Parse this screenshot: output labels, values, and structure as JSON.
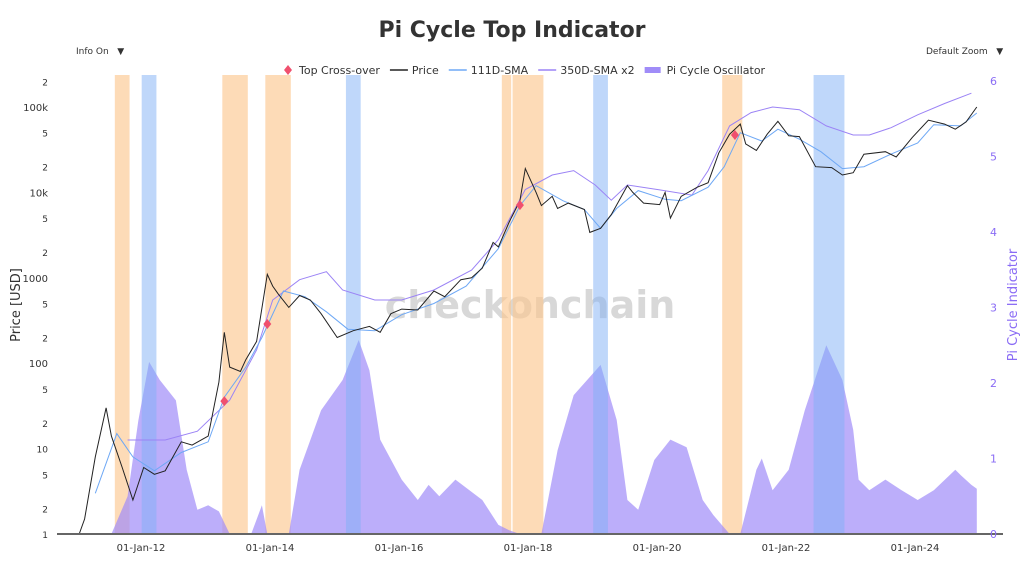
{
  "title": "Pi Cycle Top Indicator",
  "controls": {
    "info": "Info On",
    "zoom": "Default Zoom",
    "caret": "▼"
  },
  "watermark": "checkonchain",
  "colors": {
    "price": "#222222",
    "sma111": "#6ea8f5",
    "sma350x2": "#9b83f5",
    "oscillator": "#a08cf8",
    "top_band": "#fcc890",
    "bottom_band": "#7fb0f5",
    "crossover": "#f0506e",
    "right_axis": "#8a6cf5"
  },
  "chart_data": {
    "type": "line",
    "title": "Pi Cycle Top Indicator",
    "ylabel": "Price [USD]",
    "y2label": "Pi Cycle Indicator",
    "yscale": "log",
    "ylim": [
      1,
      200000
    ],
    "y2lim": [
      0,
      6
    ],
    "xlim": [
      "2010-05",
      "2025-03"
    ],
    "x_ticks": [
      "01-Jan-12",
      "01-Jan-14",
      "01-Jan-16",
      "01-Jan-18",
      "01-Jan-20",
      "01-Jan-22",
      "01-Jan-24"
    ],
    "y_ticks": [
      "1",
      "2",
      "5",
      "10",
      "2",
      "5",
      "100",
      "2",
      "5",
      "1000",
      "2",
      "5",
      "10k",
      "2",
      "5",
      "100k",
      "2"
    ],
    "y2_ticks": [
      "0",
      "1",
      "2",
      "3",
      "4",
      "5",
      "6"
    ],
    "legend": [
      "Top Cross-over",
      "Price",
      "111D-SMA",
      "350D-SMA x2",
      "Pi Cycle Oscillator"
    ],
    "legend_position": "top",
    "grid": false,
    "price": [
      [
        "2010-10",
        1
      ],
      [
        "2011-01",
        1
      ],
      [
        "2011-02",
        1.5
      ],
      [
        "2011-04",
        8
      ],
      [
        "2011-06",
        30
      ],
      [
        "2011-07",
        14
      ],
      [
        "2011-09",
        6
      ],
      [
        "2011-11",
        2.5
      ],
      [
        "2012-01",
        6
      ],
      [
        "2012-03",
        5
      ],
      [
        "2012-05",
        5.5
      ],
      [
        "2012-08",
        12
      ],
      [
        "2012-10",
        11
      ],
      [
        "2013-01",
        14
      ],
      [
        "2013-03",
        60
      ],
      [
        "2013-04",
        230
      ],
      [
        "2013-05",
        90
      ],
      [
        "2013-07",
        80
      ],
      [
        "2013-08",
        110
      ],
      [
        "2013-10",
        180
      ],
      [
        "2013-12",
        1100
      ],
      [
        "2014-01",
        800
      ],
      [
        "2014-02",
        650
      ],
      [
        "2014-04",
        450
      ],
      [
        "2014-06",
        620
      ],
      [
        "2014-08",
        550
      ],
      [
        "2014-10",
        380
      ],
      [
        "2015-01",
        200
      ],
      [
        "2015-04",
        240
      ],
      [
        "2015-07",
        270
      ],
      [
        "2015-09",
        230
      ],
      [
        "2015-11",
        380
      ],
      [
        "2016-01",
        430
      ],
      [
        "2016-04",
        420
      ],
      [
        "2016-07",
        700
      ],
      [
        "2016-09",
        600
      ],
      [
        "2016-12",
        950
      ],
      [
        "2017-02",
        1000
      ],
      [
        "2017-04",
        1300
      ],
      [
        "2017-06",
        2600
      ],
      [
        "2017-07",
        2300
      ],
      [
        "2017-09",
        4500
      ],
      [
        "2017-11",
        8000
      ],
      [
        "2017-12",
        19000
      ],
      [
        "2018-02",
        10000
      ],
      [
        "2018-03",
        7000
      ],
      [
        "2018-05",
        9000
      ],
      [
        "2018-06",
        6500
      ],
      [
        "2018-08",
        7500
      ],
      [
        "2018-11",
        6300
      ],
      [
        "2018-12",
        3400
      ],
      [
        "2019-02",
        3800
      ],
      [
        "2019-04",
        5500
      ],
      [
        "2019-07",
        12000
      ],
      [
        "2019-08",
        10000
      ],
      [
        "2019-10",
        7500
      ],
      [
        "2020-01",
        7200
      ],
      [
        "2020-02",
        10000
      ],
      [
        "2020-03",
        5000
      ],
      [
        "2020-05",
        9000
      ],
      [
        "2020-08",
        11500
      ],
      [
        "2020-10",
        13000
      ],
      [
        "2020-12",
        29000
      ],
      [
        "2021-02",
        48000
      ],
      [
        "2021-04",
        63000
      ],
      [
        "2021-05",
        37000
      ],
      [
        "2021-07",
        31000
      ],
      [
        "2021-09",
        48000
      ],
      [
        "2021-11",
        68000
      ],
      [
        "2022-01",
        46000
      ],
      [
        "2022-03",
        45000
      ],
      [
        "2022-06",
        20000
      ],
      [
        "2022-09",
        19500
      ],
      [
        "2022-11",
        16000
      ],
      [
        "2023-01",
        17000
      ],
      [
        "2023-03",
        28000
      ],
      [
        "2023-07",
        30000
      ],
      [
        "2023-09",
        26000
      ],
      [
        "2023-12",
        44000
      ],
      [
        "2024-03",
        70000
      ],
      [
        "2024-06",
        63000
      ],
      [
        "2024-08",
        55000
      ],
      [
        "2024-10",
        67000
      ],
      [
        "2024-12",
        100000
      ]
    ],
    "sma111": [
      [
        "2011-04",
        3
      ],
      [
        "2011-08",
        15
      ],
      [
        "2011-11",
        8
      ],
      [
        "2012-03",
        5.5
      ],
      [
        "2012-08",
        9
      ],
      [
        "2013-01",
        12
      ],
      [
        "2013-04",
        40
      ],
      [
        "2013-08",
        90
      ],
      [
        "2013-11",
        200
      ],
      [
        "2014-03",
        700
      ],
      [
        "2014-07",
        600
      ],
      [
        "2014-11",
        400
      ],
      [
        "2015-03",
        250
      ],
      [
        "2015-08",
        240
      ],
      [
        "2016-01",
        370
      ],
      [
        "2016-07",
        500
      ],
      [
        "2017-01",
        800
      ],
      [
        "2017-07",
        2200
      ],
      [
        "2017-11",
        7000
      ],
      [
        "2018-02",
        12000
      ],
      [
        "2018-07",
        8000
      ],
      [
        "2018-11",
        6300
      ],
      [
        "2019-02",
        3800
      ],
      [
        "2019-05",
        6500
      ],
      [
        "2019-09",
        10500
      ],
      [
        "2020-02",
        8300
      ],
      [
        "2020-05",
        8000
      ],
      [
        "2020-10",
        11500
      ],
      [
        "2021-01",
        20000
      ],
      [
        "2021-04",
        50000
      ],
      [
        "2021-08",
        40000
      ],
      [
        "2021-11",
        55000
      ],
      [
        "2022-03",
        42000
      ],
      [
        "2022-07",
        30000
      ],
      [
        "2022-11",
        19000
      ],
      [
        "2023-03",
        20000
      ],
      [
        "2023-08",
        28000
      ],
      [
        "2024-01",
        38000
      ],
      [
        "2024-04",
        62000
      ],
      [
        "2024-09",
        60000
      ],
      [
        "2024-12",
        85000
      ]
    ],
    "sma350x2": [
      [
        "2011-10",
        12.6
      ],
      [
        "2012-05",
        12.6
      ],
      [
        "2012-11",
        16
      ],
      [
        "2013-05",
        37
      ],
      [
        "2013-10",
        143
      ],
      [
        "2014-01",
        550
      ],
      [
        "2014-06",
        950
      ],
      [
        "2014-11",
        1180
      ],
      [
        "2015-02",
        720
      ],
      [
        "2015-08",
        550
      ],
      [
        "2016-01",
        550
      ],
      [
        "2016-07",
        720
      ],
      [
        "2017-02",
        1230
      ],
      [
        "2017-07",
        2800
      ],
      [
        "2017-12",
        10800
      ],
      [
        "2018-05",
        16000
      ],
      [
        "2018-09",
        18000
      ],
      [
        "2019-01",
        12200
      ],
      [
        "2019-04",
        8100
      ],
      [
        "2019-07",
        12200
      ],
      [
        "2020-01",
        10700
      ],
      [
        "2020-07",
        9300
      ],
      [
        "2020-10",
        18000
      ],
      [
        "2021-02",
        60000
      ],
      [
        "2021-06",
        86000
      ],
      [
        "2021-10",
        100000
      ],
      [
        "2022-03",
        93000
      ],
      [
        "2022-08",
        60000
      ],
      [
        "2023-01",
        47000
      ],
      [
        "2023-04",
        47000
      ],
      [
        "2023-08",
        57000
      ],
      [
        "2024-01",
        81000
      ],
      [
        "2024-06",
        110000
      ],
      [
        "2024-11",
        145000
      ]
    ],
    "oscillator": [
      [
        "2011-07",
        0
      ],
      [
        "2011-10",
        0.5
      ],
      [
        "2011-12",
        1.5
      ],
      [
        "2012-02",
        2.28
      ],
      [
        "2012-04",
        2.04
      ],
      [
        "2012-07",
        1.77
      ],
      [
        "2012-09",
        0.85
      ],
      [
        "2012-11",
        0.32
      ],
      [
        "2013-01",
        0.38
      ],
      [
        "2013-03",
        0.3
      ],
      [
        "2013-05",
        0
      ],
      [
        "2013-09",
        0
      ],
      [
        "2013-11",
        0.38
      ],
      [
        "2013-12",
        0
      ],
      [
        "2014-04",
        0
      ],
      [
        "2014-06",
        0.85
      ],
      [
        "2014-10",
        1.64
      ],
      [
        "2015-02",
        2.04
      ],
      [
        "2015-05",
        2.57
      ],
      [
        "2015-07",
        2.17
      ],
      [
        "2015-09",
        1.25
      ],
      [
        "2016-01",
        0.72
      ],
      [
        "2016-04",
        0.45
      ],
      [
        "2016-06",
        0.65
      ],
      [
        "2016-08",
        0.5
      ],
      [
        "2016-11",
        0.72
      ],
      [
        "2017-04",
        0.45
      ],
      [
        "2017-07",
        0.12
      ],
      [
        "2017-09",
        0.05
      ],
      [
        "2017-11",
        0
      ],
      [
        "2018-03",
        0
      ],
      [
        "2018-06",
        1.11
      ],
      [
        "2018-09",
        1.84
      ],
      [
        "2019-02",
        2.24
      ],
      [
        "2019-05",
        1.51
      ],
      [
        "2019-07",
        0.45
      ],
      [
        "2019-09",
        0.32
      ],
      [
        "2019-12",
        0.98
      ],
      [
        "2020-03",
        1.25
      ],
      [
        "2020-06",
        1.15
      ],
      [
        "2020-09",
        0.45
      ],
      [
        "2020-11",
        0.25
      ],
      [
        "2021-02",
        0
      ],
      [
        "2021-04",
        0
      ],
      [
        "2021-07",
        0.85
      ],
      [
        "2021-08",
        1.0
      ],
      [
        "2021-10",
        0.58
      ],
      [
        "2022-01",
        0.85
      ],
      [
        "2022-04",
        1.64
      ],
      [
        "2022-08",
        2.5
      ],
      [
        "2022-11",
        2.04
      ],
      [
        "2023-01",
        1.38
      ],
      [
        "2023-02",
        0.72
      ],
      [
        "2023-04",
        0.58
      ],
      [
        "2023-07",
        0.72
      ],
      [
        "2023-10",
        0.58
      ],
      [
        "2024-01",
        0.45
      ],
      [
        "2024-04",
        0.58
      ],
      [
        "2024-08",
        0.85
      ],
      [
        "2024-09",
        0.78
      ],
      [
        "2024-11",
        0.65
      ],
      [
        "2024-12",
        0.6
      ]
    ],
    "top_bands": [
      [
        "2011-08",
        "2011-10"
      ],
      [
        "2013-04",
        "2013-08"
      ],
      [
        "2013-12",
        "2014-04"
      ],
      [
        "2017-08",
        "2017-09"
      ],
      [
        "2017-10",
        "2018-03"
      ],
      [
        "2021-01",
        "2021-04"
      ]
    ],
    "bottom_bands": [
      [
        "2012-01",
        "2012-03"
      ],
      [
        "2015-03",
        "2015-05"
      ],
      [
        "2019-01",
        "2019-03"
      ],
      [
        "2022-06",
        "2022-11"
      ]
    ],
    "crossovers": [
      [
        "2013-04",
        36
      ],
      [
        "2013-12",
        288
      ],
      [
        "2017-11",
        7100
      ],
      [
        "2021-03",
        47000
      ]
    ]
  }
}
